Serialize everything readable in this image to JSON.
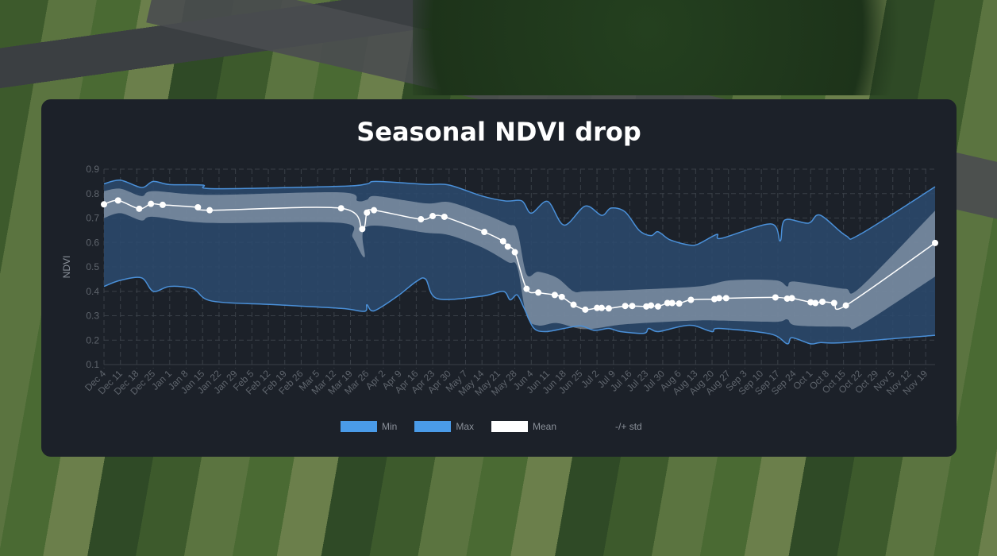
{
  "chart_data": {
    "type": "line",
    "title": "Seasonal NDVI drop",
    "ylabel": "NDVI",
    "xlabel": "",
    "ylim": [
      0.1,
      0.9
    ],
    "yticks": [
      "0.1",
      "0.2",
      "0.3",
      "0.4",
      "0.5",
      "0.6",
      "0.7",
      "0.8",
      "0.9"
    ],
    "xlim": [
      "Dec 4",
      "Nov 23"
    ],
    "xticks": [
      "Dec 4",
      "Dec 11",
      "Dec 18",
      "Dec 25",
      "Jan 1",
      "Jan 8",
      "Jan 15",
      "Jan 22",
      "Jan 29",
      "Feb 5",
      "Feb 12",
      "Feb 19",
      "Feb 26",
      "Mar 5",
      "Mar 12",
      "Mar 19",
      "Mar 26",
      "Apr 2",
      "Apr 9",
      "Apr 16",
      "Apr 23",
      "Apr 30",
      "May 7",
      "May 14",
      "May 21",
      "May 28",
      "Jun 4",
      "Jun 11",
      "Jun 18",
      "Jun 25",
      "Jul 2",
      "Jul 9",
      "Jul 16",
      "Jul 23",
      "Jul 30",
      "Aug 6",
      "Aug 13",
      "Aug 20",
      "Aug 27",
      "Sep 3",
      "Sep 10",
      "Sep 17",
      "Sep 24",
      "Oct 1",
      "Oct 8",
      "Oct 15",
      "Oct 22",
      "Oct 29",
      "Nov 5",
      "Nov 12",
      "Nov 19"
    ],
    "grid": true,
    "legend_placement": "bottom",
    "colors": {
      "min": "#4a90d9",
      "max": "#4a90d9",
      "band": "#2b4a6f",
      "mean": "#ffffff",
      "std": "#c8d0da",
      "legend_blue": "#4a9be8"
    },
    "legend": [
      "Min",
      "Max",
      "Mean",
      "-/+ std"
    ],
    "series": [
      {
        "name": "Mean",
        "points": [
          [
            "Dec 4",
            0.756
          ],
          [
            "Dec 10",
            0.772
          ],
          [
            "Dec 19",
            0.738
          ],
          [
            "Dec 24",
            0.758
          ],
          [
            "Dec 29",
            0.754
          ],
          [
            "Jan 13",
            0.744
          ],
          [
            "Jan 18",
            0.732
          ],
          [
            "Mar 15",
            0.74
          ],
          [
            "Mar 24",
            0.655
          ],
          [
            "Mar 26",
            0.722
          ],
          [
            "Mar 29",
            0.732
          ],
          [
            "Apr 18",
            0.695
          ],
          [
            "Apr 23",
            0.708
          ],
          [
            "Apr 28",
            0.705
          ],
          [
            "May 15",
            0.643
          ],
          [
            "May 23",
            0.605
          ],
          [
            "May 25",
            0.583
          ],
          [
            "May 28",
            0.56
          ],
          [
            "Jun 2",
            0.41
          ],
          [
            "Jun 7",
            0.395
          ],
          [
            "Jun 14",
            0.385
          ],
          [
            "Jun 17",
            0.377
          ],
          [
            "Jun 22",
            0.345
          ],
          [
            "Jun 27",
            0.325
          ],
          [
            "Jul 2",
            0.332
          ],
          [
            "Jul 4",
            0.332
          ],
          [
            "Jul 7",
            0.33
          ],
          [
            "Jul 14",
            0.34
          ],
          [
            "Jul 17",
            0.34
          ],
          [
            "Jul 23",
            0.338
          ],
          [
            "Jul 25",
            0.342
          ],
          [
            "Jul 28",
            0.338
          ],
          [
            "Aug 1",
            0.352
          ],
          [
            "Aug 3",
            0.352
          ],
          [
            "Aug 6",
            0.35
          ],
          [
            "Aug 11",
            0.365
          ],
          [
            "Aug 21",
            0.368
          ],
          [
            "Aug 23",
            0.372
          ],
          [
            "Aug 26",
            0.372
          ],
          [
            "Sep 16",
            0.375
          ],
          [
            "Sep 21",
            0.37
          ],
          [
            "Sep 23",
            0.372
          ],
          [
            "Oct 1",
            0.355
          ],
          [
            "Oct 3",
            0.352
          ],
          [
            "Oct 6",
            0.357
          ],
          [
            "Oct 11",
            0.352
          ],
          [
            "Oct 16",
            0.342
          ],
          [
            "Nov 23",
            0.598
          ]
        ]
      },
      {
        "name": "Max",
        "points": [
          [
            "Dec 4",
            0.84
          ],
          [
            "Dec 11",
            0.855
          ],
          [
            "Dec 20",
            0.825
          ],
          [
            "Dec 25",
            0.85
          ],
          [
            "Jan 1",
            0.837
          ],
          [
            "Jan 15",
            0.835
          ],
          [
            "Jan 20",
            0.82
          ],
          [
            "Mar 15",
            0.83
          ],
          [
            "Mar 26",
            0.84
          ],
          [
            "Mar 30",
            0.85
          ],
          [
            "Apr 20",
            0.838
          ],
          [
            "Apr 30",
            0.835
          ],
          [
            "May 14",
            0.79
          ],
          [
            "May 24",
            0.77
          ],
          [
            "May 31",
            0.77
          ],
          [
            "Jun 4",
            0.72
          ],
          [
            "Jun 11",
            0.768
          ],
          [
            "Jun 18",
            0.671
          ],
          [
            "Jun 27",
            0.749
          ],
          [
            "Jul 4",
            0.711
          ],
          [
            "Jul 8",
            0.741
          ],
          [
            "Jul 14",
            0.725
          ],
          [
            "Jul 20",
            0.649
          ],
          [
            "Jul 25",
            0.628
          ],
          [
            "Jul 28",
            0.644
          ],
          [
            "Aug 2",
            0.611
          ],
          [
            "Aug 10",
            0.59
          ],
          [
            "Aug 14",
            0.593
          ],
          [
            "Aug 22",
            0.633
          ],
          [
            "Aug 24",
            0.617
          ],
          [
            "Sep 14",
            0.676
          ],
          [
            "Sep 18",
            0.606
          ],
          [
            "Sep 20",
            0.692
          ],
          [
            "Sep 30",
            0.679
          ],
          [
            "Oct 5",
            0.712
          ],
          [
            "Oct 16",
            0.628
          ],
          [
            "Oct 22",
            0.633
          ],
          [
            "Nov 23",
            0.828
          ]
        ]
      },
      {
        "name": "Min",
        "points": [
          [
            "Dec 4",
            0.42
          ],
          [
            "Dec 11",
            0.445
          ],
          [
            "Dec 20",
            0.455
          ],
          [
            "Dec 25",
            0.4
          ],
          [
            "Jan 1",
            0.42
          ],
          [
            "Jan 11",
            0.41
          ],
          [
            "Jan 19",
            0.36
          ],
          [
            "Feb 15",
            0.345
          ],
          [
            "Mar 15",
            0.33
          ],
          [
            "Mar 25",
            0.318
          ],
          [
            "Mar 26",
            0.345
          ],
          [
            "Mar 29",
            0.32
          ],
          [
            "Apr 8",
            0.38
          ],
          [
            "Apr 16",
            0.44
          ],
          [
            "Apr 20",
            0.45
          ],
          [
            "Apr 25",
            0.37
          ],
          [
            "May 14",
            0.38
          ],
          [
            "May 23",
            0.4
          ],
          [
            "May 26",
            0.365
          ],
          [
            "May 29",
            0.385
          ],
          [
            "Jun 1",
            0.33
          ],
          [
            "Jun 5",
            0.25
          ],
          [
            "Jun 10",
            0.235
          ],
          [
            "Jun 18",
            0.248
          ],
          [
            "Jun 25",
            0.258
          ],
          [
            "Jul 1",
            0.24
          ],
          [
            "Jul 7",
            0.248
          ],
          [
            "Jul 12",
            0.235
          ],
          [
            "Jul 22",
            0.228
          ],
          [
            "Jul 24",
            0.248
          ],
          [
            "Jul 28",
            0.235
          ],
          [
            "Aug 6",
            0.255
          ],
          [
            "Aug 12",
            0.26
          ],
          [
            "Aug 20",
            0.235
          ],
          [
            "Aug 23",
            0.248
          ],
          [
            "Sep 14",
            0.225
          ],
          [
            "Sep 21",
            0.185
          ],
          [
            "Sep 23",
            0.21
          ],
          [
            "Oct 1",
            0.185
          ],
          [
            "Oct 5",
            0.19
          ],
          [
            "Oct 15",
            0.19
          ],
          [
            "Nov 23",
            0.22
          ]
        ]
      },
      {
        "name": "-/+ std",
        "upper": [
          [
            "Dec 4",
            0.81
          ],
          [
            "Dec 11",
            0.82
          ],
          [
            "Dec 20",
            0.79
          ],
          [
            "Dec 25",
            0.81
          ],
          [
            "Jan 18",
            0.795
          ],
          [
            "Mar 15",
            0.805
          ],
          [
            "Mar 22",
            0.77
          ],
          [
            "Mar 26",
            0.775
          ],
          [
            "Mar 30",
            0.79
          ],
          [
            "Apr 20",
            0.76
          ],
          [
            "Apr 30",
            0.765
          ],
          [
            "May 14",
            0.72
          ],
          [
            "May 25",
            0.675
          ],
          [
            "May 29",
            0.65
          ],
          [
            "Jun 2",
            0.47
          ],
          [
            "Jun 7",
            0.48
          ],
          [
            "Jun 15",
            0.455
          ],
          [
            "Jun 22",
            0.4
          ],
          [
            "Jun 27",
            0.4
          ],
          [
            "Jul 14",
            0.405
          ],
          [
            "Aug 14",
            0.42
          ],
          [
            "Aug 28",
            0.445
          ],
          [
            "Sep 16",
            0.445
          ],
          [
            "Sep 21",
            0.42
          ],
          [
            "Sep 23",
            0.44
          ],
          [
            "Oct 5",
            0.425
          ],
          [
            "Oct 16",
            0.41
          ],
          [
            "Oct 22",
            0.415
          ],
          [
            "Nov 23",
            0.73
          ]
        ],
        "lower": [
          [
            "Dec 4",
            0.7
          ],
          [
            "Dec 11",
            0.72
          ],
          [
            "Dec 20",
            0.69
          ],
          [
            "Dec 25",
            0.705
          ],
          [
            "Jan 18",
            0.68
          ],
          [
            "Mar 15",
            0.68
          ],
          [
            "Mar 20",
            0.62
          ],
          [
            "Mar 25",
            0.54
          ],
          [
            "Mar 26",
            0.665
          ],
          [
            "Apr 20",
            0.64
          ],
          [
            "Apr 30",
            0.63
          ],
          [
            "May 14",
            0.58
          ],
          [
            "May 25",
            0.52
          ],
          [
            "May 29",
            0.5
          ],
          [
            "Jun 2",
            0.3
          ],
          [
            "Jun 7",
            0.26
          ],
          [
            "Jun 15",
            0.27
          ],
          [
            "Jun 27",
            0.245
          ],
          [
            "Jul 14",
            0.265
          ],
          [
            "Aug 12",
            0.28
          ],
          [
            "Aug 24",
            0.28
          ],
          [
            "Sep 16",
            0.275
          ],
          [
            "Sep 21",
            0.285
          ],
          [
            "Sep 25",
            0.26
          ],
          [
            "Oct 16",
            0.255
          ],
          [
            "Oct 22",
            0.26
          ],
          [
            "Nov 23",
            0.46
          ]
        ]
      }
    ]
  }
}
